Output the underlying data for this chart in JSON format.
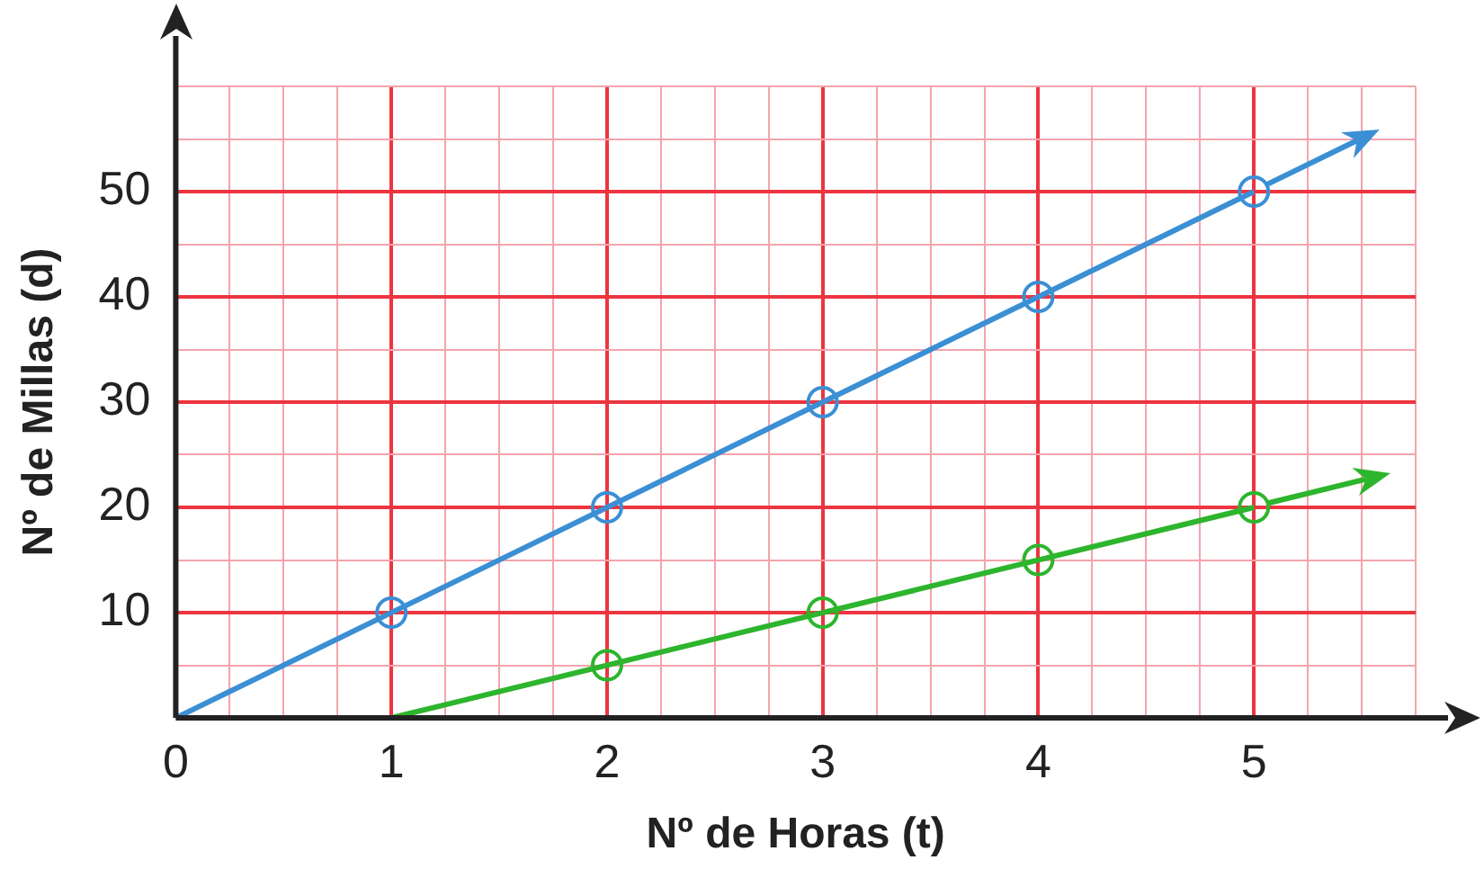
{
  "chart_data": {
    "type": "line",
    "xlabel": "Nº de Horas (t)",
    "ylabel": "Nº de Millas (d)",
    "xlim": [
      0,
      5.75
    ],
    "ylim": [
      0,
      60
    ],
    "xticks": [
      0,
      {
        "value": 0.25,
        "label": null
      },
      {
        "value": 0.5,
        "label": null
      },
      {
        "value": 0.75,
        "label": null
      },
      1,
      {
        "value": 1.25,
        "label": null
      },
      {
        "value": 1.5,
        "label": null
      },
      {
        "value": 1.75,
        "label": null
      },
      2,
      {
        "value": 2.25,
        "label": null
      },
      {
        "value": 2.5,
        "label": null
      },
      {
        "value": 2.75,
        "label": null
      },
      3,
      {
        "value": 3.25,
        "label": null
      },
      {
        "value": 3.5,
        "label": null
      },
      {
        "value": 3.75,
        "label": null
      },
      4,
      {
        "value": 4.25,
        "label": null
      },
      {
        "value": 4.5,
        "label": null
      },
      {
        "value": 4.75,
        "label": null
      },
      5,
      {
        "value": 5.25,
        "label": null
      },
      {
        "value": 5.5,
        "label": null
      },
      {
        "value": 5.75,
        "label": null
      }
    ],
    "yticks": [
      {
        "value": 0,
        "label": null
      },
      {
        "value": 5,
        "label": null
      },
      10,
      {
        "value": 15,
        "label": null
      },
      20,
      {
        "value": 25,
        "label": null
      },
      30,
      {
        "value": 35,
        "label": null
      },
      40,
      {
        "value": 45,
        "label": null
      },
      50,
      {
        "value": 55,
        "label": null
      },
      {
        "value": 60,
        "label": null
      }
    ],
    "grid": true,
    "legend": false,
    "series": [
      {
        "type": "line",
        "color": "#3b8fd4",
        "x": [
          0,
          5
        ],
        "values": [
          0,
          50
        ],
        "marker": "none"
      },
      {
        "type": "scatter",
        "color": "#3b8fd4",
        "x": [
          1,
          2,
          3,
          4,
          5
        ],
        "values": [
          10,
          20,
          30,
          40,
          50
        ],
        "marker": "circle"
      },
      {
        "type": "line",
        "color": "#2db52d",
        "x": [
          1,
          5
        ],
        "values": [
          0,
          20
        ],
        "marker": "none"
      },
      {
        "type": "scatter",
        "color": "#2db52d",
        "x": [
          2,
          3,
          4,
          5
        ],
        "values": [
          5,
          10,
          15,
          20
        ],
        "marker": "circle"
      }
    ]
  }
}
